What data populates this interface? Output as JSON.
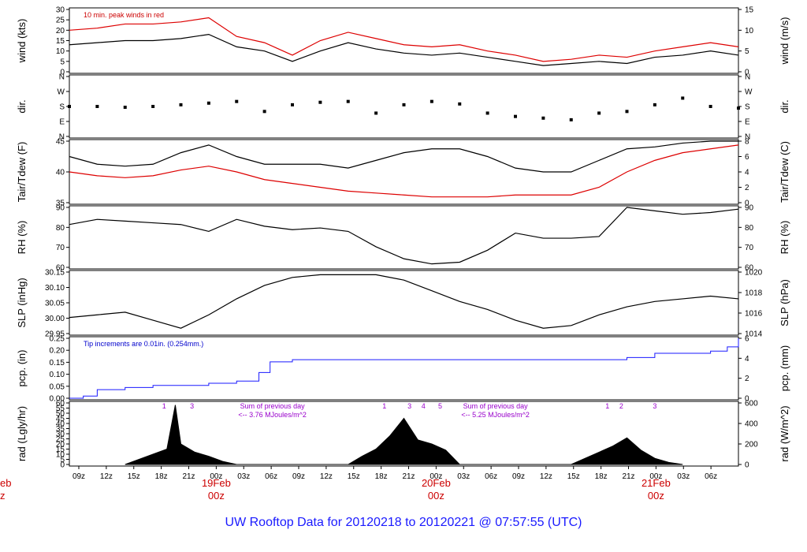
{
  "title": "UW Rooftop Data for 20120218  to  20120221 @ 07:57:55  (UTC)",
  "colors": {
    "black": "#000000",
    "red": "#dd0000",
    "blue": "#1a1aff",
    "magenta": "#9900cc"
  },
  "x_axis": {
    "hour_ticks": [
      "09z",
      "12z",
      "15z",
      "18z",
      "21z",
      "00z",
      "03z",
      "06z",
      "09z",
      "12z",
      "15z",
      "18z",
      "21z",
      "00z",
      "03z",
      "06z",
      "09z",
      "12z",
      "15z",
      "18z",
      "21z",
      "00z",
      "03z",
      "06z"
    ],
    "day_labels": [
      {
        "date": "19Feb",
        "hour": "00z",
        "tick_index": 5
      },
      {
        "date": "20Feb",
        "hour": "00z",
        "tick_index": 13
      },
      {
        "date": "21Feb",
        "hour": "00z",
        "tick_index": 21
      }
    ],
    "clipped_left_label": {
      "date": "eb",
      "hour": "z"
    }
  },
  "chart_data": [
    {
      "type": "line",
      "name": "wind",
      "ylabel_left": "wind (kts)",
      "ylabel_right": "wind (m/s)",
      "ylim": [
        0,
        30
      ],
      "ticks_left": [
        "0",
        "5",
        "10",
        "15",
        "20",
        "25",
        "30"
      ],
      "ylim_right": [
        0,
        15
      ],
      "ticks_right": [
        "0",
        "5",
        "10",
        "15"
      ],
      "annotation": "10 min. peak winds in red",
      "series": [
        {
          "name": "wind",
          "color": "#000000",
          "x": [
            0,
            1,
            2,
            3,
            4,
            5,
            6,
            7,
            8,
            9,
            10,
            11,
            12,
            13,
            14,
            15,
            16,
            17,
            18,
            19,
            20,
            21,
            22,
            23,
            24
          ],
          "y": [
            13,
            14,
            15,
            15,
            16,
            18,
            12,
            10,
            5,
            10,
            14,
            11,
            9,
            8,
            9,
            7,
            5,
            3,
            4,
            5,
            4,
            7,
            8,
            10,
            8
          ]
        },
        {
          "name": "10 min. peak winds",
          "color": "#dd0000",
          "x": [
            0,
            1,
            2,
            3,
            4,
            5,
            6,
            7,
            8,
            9,
            10,
            11,
            12,
            13,
            14,
            15,
            16,
            17,
            18,
            19,
            20,
            21,
            22,
            23,
            24
          ],
          "y": [
            20,
            21,
            23,
            23,
            24,
            26,
            17,
            14,
            8,
            15,
            19,
            16,
            13,
            12,
            13,
            10,
            8,
            5,
            6,
            8,
            7,
            10,
            12,
            14,
            12
          ]
        }
      ]
    },
    {
      "type": "scatter",
      "name": "dir",
      "ylabel_left": "dir.",
      "ylabel_right": "dir.",
      "ylim": [
        0,
        360
      ],
      "ticks_left": [
        "N",
        "E",
        "S",
        "W",
        "N"
      ],
      "ticks_right": [
        "N",
        "E",
        "S",
        "W",
        "N"
      ],
      "series": [
        {
          "name": "dir",
          "color": "#000000",
          "x": [
            0,
            1,
            2,
            3,
            4,
            5,
            6,
            7,
            8,
            9,
            10,
            11,
            12,
            13,
            14,
            15,
            16,
            17,
            18,
            19,
            20,
            21,
            22,
            23,
            24
          ],
          "y": [
            180,
            180,
            175,
            180,
            190,
            200,
            210,
            150,
            190,
            205,
            210,
            140,
            190,
            210,
            195,
            140,
            120,
            110,
            100,
            140,
            150,
            190,
            230,
            180,
            170
          ]
        }
      ]
    },
    {
      "type": "line",
      "name": "temp",
      "ylabel_left": "Tair/Tdew (F)",
      "ylabel_right": "Tair/Tdew (C)",
      "ylim": [
        31,
        47
      ],
      "ticks_left": [
        "35",
        "40",
        "45"
      ],
      "ylim_right": [
        -0.6,
        8.3
      ],
      "ticks_right": [
        "0",
        "2",
        "4",
        "6",
        "8"
      ],
      "series": [
        {
          "name": "Tair",
          "color": "#000000",
          "x": [
            0,
            1,
            2,
            3,
            4,
            5,
            6,
            7,
            8,
            9,
            10,
            11,
            12,
            13,
            14,
            15,
            16,
            17,
            18,
            19,
            20,
            21,
            22,
            23,
            24
          ],
          "y": [
            43,
            41,
            40.5,
            41,
            44,
            46,
            43,
            41,
            41,
            41,
            40,
            42,
            44,
            45,
            45,
            43,
            40,
            39,
            39,
            42,
            45,
            45.5,
            46.5,
            47,
            47
          ]
        },
        {
          "name": "Tdew",
          "color": "#dd0000",
          "x": [
            0,
            1,
            2,
            3,
            4,
            5,
            6,
            7,
            8,
            9,
            10,
            11,
            12,
            13,
            14,
            15,
            16,
            17,
            18,
            19,
            20,
            21,
            22,
            23,
            24
          ],
          "y": [
            39,
            38,
            37.5,
            38,
            39.5,
            40.5,
            39,
            37,
            36,
            35,
            34,
            33.5,
            33,
            32.5,
            32.5,
            32.5,
            33,
            33,
            33,
            35,
            39,
            42,
            44,
            45,
            46
          ]
        }
      ]
    },
    {
      "type": "line",
      "name": "rh",
      "ylabel_left": "RH (%)",
      "ylabel_right": "RH (%)",
      "ylim": [
        60,
        95
      ],
      "ticks_left": [
        "60",
        "70",
        "80",
        "90"
      ],
      "ticks_right": [
        "60",
        "70",
        "80",
        "90"
      ],
      "series": [
        {
          "name": "RH",
          "color": "#000000",
          "x": [
            0,
            1,
            2,
            3,
            4,
            5,
            6,
            7,
            8,
            9,
            10,
            11,
            12,
            13,
            14,
            15,
            16,
            17,
            18,
            19,
            20,
            21,
            22,
            23,
            24
          ],
          "y": [
            85,
            88,
            87,
            86,
            85,
            81,
            88,
            84,
            82,
            83,
            81,
            72,
            65,
            62,
            63,
            70,
            80,
            77,
            77,
            78,
            95,
            93,
            91,
            92,
            94
          ]
        }
      ]
    },
    {
      "type": "line",
      "name": "slp",
      "ylabel_left": "SLP (inHg)",
      "ylabel_right": "SLP (hPa)",
      "ylim": [
        29.93,
        30.16
      ],
      "ticks_left": [
        "29.95",
        "30.00",
        "30.05",
        "30.10",
        "30.15"
      ],
      "ylim_right": [
        1013.5,
        1021.5
      ],
      "ticks_right": [
        "1014",
        "1016",
        "1018",
        "1020"
      ],
      "series": [
        {
          "name": "SLP",
          "color": "#000000",
          "x": [
            0,
            1,
            2,
            3,
            4,
            5,
            6,
            7,
            8,
            9,
            10,
            11,
            12,
            13,
            14,
            15,
            16,
            17,
            18,
            19,
            20,
            21,
            22,
            23,
            24
          ],
          "y": [
            29.99,
            30.0,
            30.01,
            29.98,
            29.95,
            30.0,
            30.06,
            30.11,
            30.14,
            30.15,
            30.15,
            30.15,
            30.13,
            30.09,
            30.05,
            30.02,
            29.98,
            29.95,
            29.96,
            30.0,
            30.03,
            30.05,
            30.06,
            30.07,
            30.06
          ]
        }
      ]
    },
    {
      "type": "area",
      "name": "pcp",
      "ylabel_left": "pcp. (in)",
      "ylabel_right": "pcp. (mm)",
      "ylim": [
        0,
        0.28
      ],
      "ticks_left": [
        "0.00",
        "0.05",
        "0.10",
        "0.15",
        "0.20",
        "0.25"
      ],
      "ylim_right": [
        0,
        7.1
      ],
      "ticks_right": [
        "0",
        "2",
        "4",
        "6"
      ],
      "annotation": "Tip increments are 0.01in. (0.254mm.)",
      "series": [
        {
          "name": "pcp",
          "color": "#1a1aff",
          "x": [
            0,
            0.5,
            1,
            2,
            3,
            4,
            5,
            6,
            6.8,
            7.2,
            8,
            10,
            12,
            14,
            16,
            18,
            20,
            21,
            22,
            23,
            23.6,
            24
          ],
          "y": [
            0,
            0.01,
            0.04,
            0.05,
            0.06,
            0.06,
            0.07,
            0.08,
            0.12,
            0.17,
            0.18,
            0.18,
            0.18,
            0.18,
            0.18,
            0.18,
            0.19,
            0.21,
            0.21,
            0.22,
            0.24,
            0.28
          ]
        }
      ]
    },
    {
      "type": "area",
      "name": "rad",
      "ylabel_left": "rad (Lgly/hr)",
      "ylabel_right": "rad (W/m^2)",
      "ylim": [
        0,
        60
      ],
      "ticks_left": [
        "0",
        "5",
        "10",
        "15",
        "20",
        "25",
        "30",
        "35",
        "40",
        "45",
        "50",
        "55",
        "60"
      ],
      "ylim_right": [
        0,
        700
      ],
      "ticks_right": [
        "0",
        "200",
        "400",
        "600"
      ],
      "annotations": [
        {
          "text": "Sum of previous day",
          "at": 7
        },
        {
          "text": "<-- 3.76 MJoules/m^2",
          "at": 7
        },
        {
          "text": "Sum of previous day",
          "at": 15
        },
        {
          "text": "<-- 5.25 MJoules/m^2",
          "at": 15
        }
      ],
      "markers": [
        {
          "text": "1",
          "at": 3.4
        },
        {
          "text": "3",
          "at": 4.4
        },
        {
          "text": "1",
          "at": 11.3
        },
        {
          "text": "3",
          "at": 12.2
        },
        {
          "text": "4",
          "at": 12.7
        },
        {
          "text": "5",
          "at": 13.3
        },
        {
          "text": "1",
          "at": 19.3
        },
        {
          "text": "2",
          "at": 19.8
        },
        {
          "text": "3",
          "at": 21.0
        }
      ],
      "series": [
        {
          "name": "rad",
          "color": "#000000",
          "x": [
            2,
            2.5,
            3,
            3.5,
            3.8,
            4,
            4.5,
            5,
            5.5,
            6,
            10,
            10.5,
            11,
            11.5,
            12,
            12.5,
            13,
            13.5,
            14,
            18,
            18.5,
            19,
            19.5,
            20,
            20.5,
            21,
            21.5,
            22
          ],
          "y": [
            0,
            5,
            10,
            15,
            58,
            20,
            12,
            8,
            3,
            0,
            0,
            8,
            15,
            28,
            45,
            24,
            20,
            14,
            0,
            0,
            6,
            12,
            18,
            26,
            14,
            6,
            2,
            0
          ]
        }
      ]
    }
  ]
}
